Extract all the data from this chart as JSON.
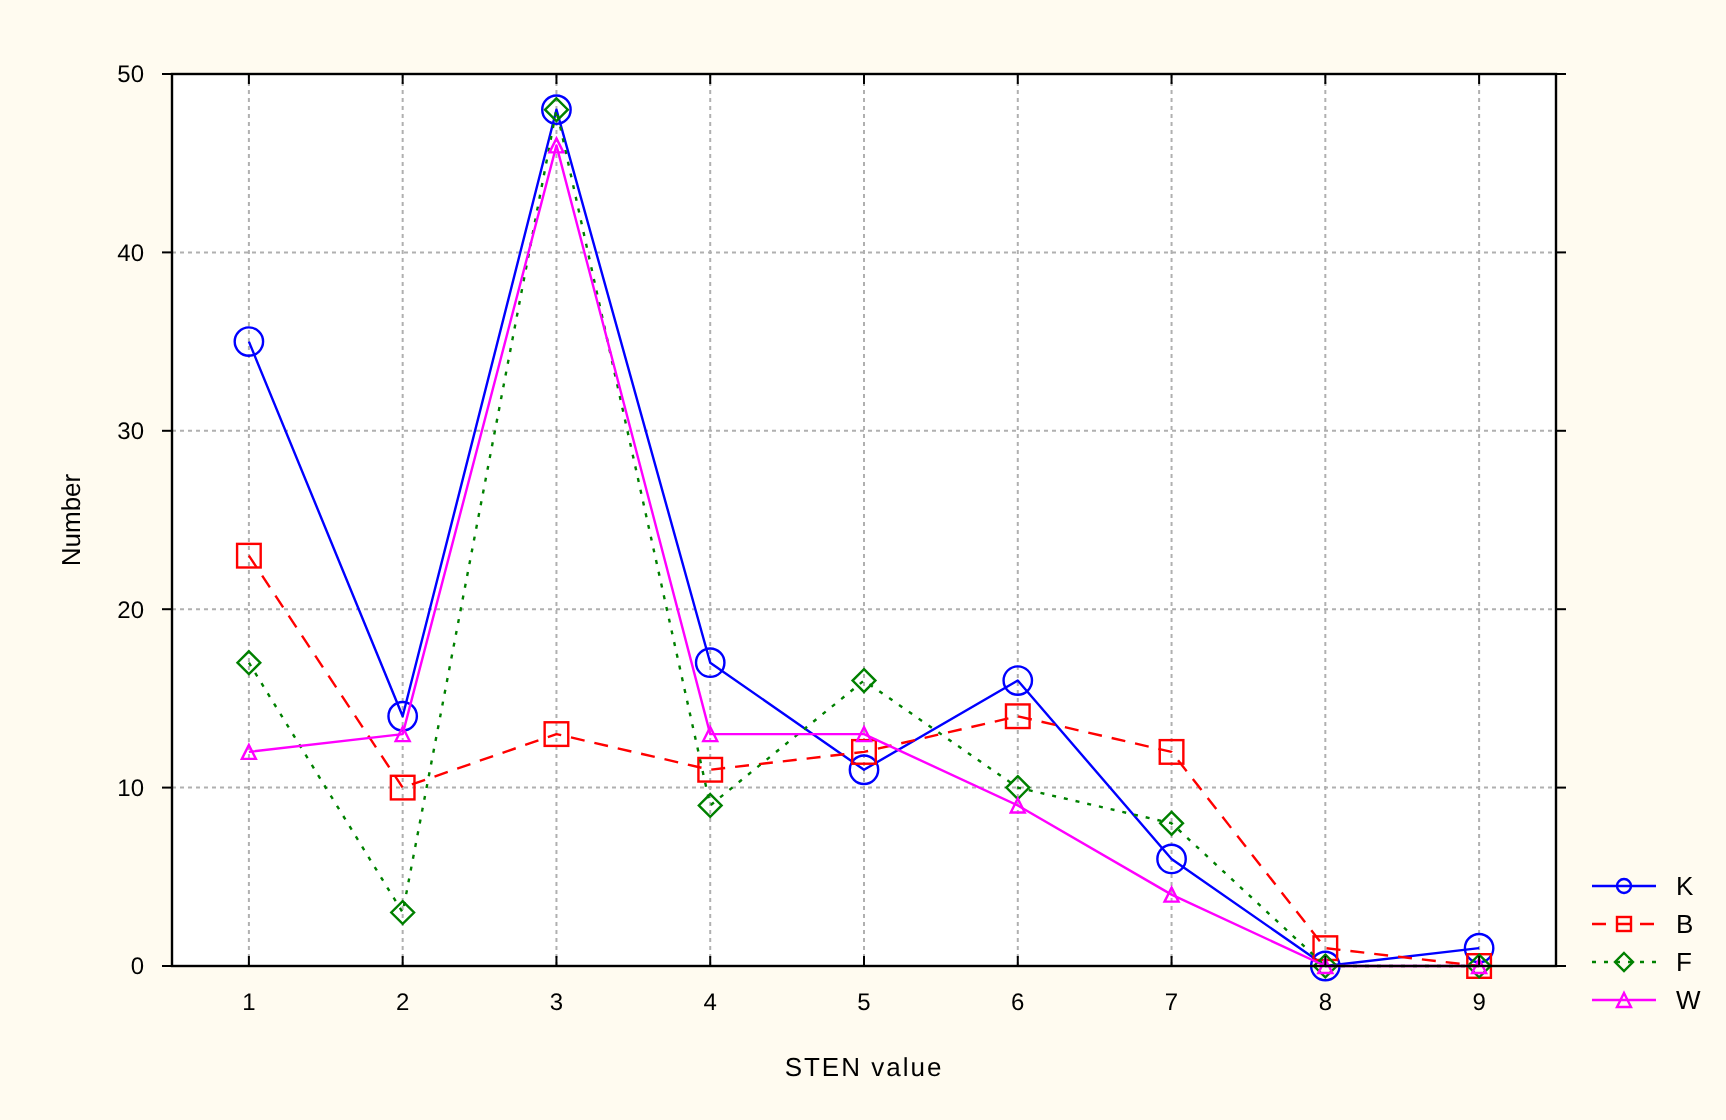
{
  "chart_data": {
    "type": "line",
    "xlabel": "STEN value",
    "ylabel": "Number",
    "categories": [
      "1",
      "2",
      "3",
      "4",
      "5",
      "6",
      "7",
      "8",
      "9"
    ],
    "ylim": [
      0,
      50
    ],
    "yticks": [
      0,
      10,
      20,
      30,
      40,
      50
    ],
    "grid": true,
    "legend": "bottom right",
    "series": [
      {
        "name": "K",
        "color": "#0000ff",
        "marker": "circle",
        "line_style": "solid",
        "values": [
          35,
          14,
          48,
          17,
          11,
          16,
          6,
          0,
          1
        ]
      },
      {
        "name": "B",
        "color": "#ff0000",
        "marker": "square",
        "line_style": "dashed",
        "values": [
          23,
          10,
          13,
          11,
          12,
          14,
          12,
          1,
          0
        ]
      },
      {
        "name": "F",
        "color": "#008000",
        "marker": "diamond",
        "line_style": "dotted",
        "values": [
          17,
          3,
          48,
          9,
          16,
          10,
          8,
          0,
          0
        ]
      },
      {
        "name": "W",
        "color": "#ff00ff",
        "marker": "triangle",
        "line_style": "solid",
        "values": [
          12,
          13,
          46,
          13,
          13,
          9,
          4,
          0,
          0
        ]
      }
    ]
  }
}
